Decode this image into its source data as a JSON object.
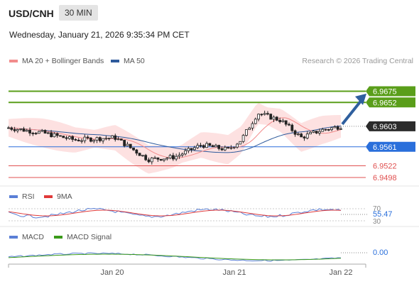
{
  "header": {
    "symbol": "USD/CNH",
    "timeframe": "30 MIN",
    "datetime": "Wednesday, January 21, 2026 9:35:34 PM CET"
  },
  "legend": {
    "ma20": "MA 20 + Bollinger Bands",
    "ma50": "MA 50",
    "credit": "Research © 2026 Trading Central",
    "rsi": "RSI",
    "rsi_ma": "9MA",
    "macd": "MACD",
    "macd_signal": "MACD Signal"
  },
  "colors": {
    "ma20": "#f28c8c",
    "ma50": "#2e5a9c",
    "bollinger": "#fde1e1",
    "resistance": "#5a9e1a",
    "support": "#e05050",
    "pivot": "#2a6fdb",
    "arrow": "#2f5f9e",
    "candle": "#222222",
    "rsi": "#5a7fd6",
    "rsi_ma": "#e03a3a",
    "macd": "#5a7fd6",
    "macd_signal": "#3a9a1a"
  },
  "chart_data": [
    {
      "type": "candlestick",
      "ylim": [
        6.948,
        6.97
      ],
      "xticks": [
        "Jan 20",
        "Jan 21",
        "Jan 22"
      ],
      "levels": [
        {
          "label": "6.9675",
          "value": 6.9675,
          "kind": "resistance"
        },
        {
          "label": "6.9652",
          "value": 6.9652,
          "kind": "resistance"
        },
        {
          "label": "6.9603",
          "value": 6.9603,
          "kind": "last"
        },
        {
          "label": "6.9561",
          "value": 6.9561,
          "kind": "pivot"
        },
        {
          "label": "6.9522",
          "value": 6.9522,
          "kind": "support"
        },
        {
          "label": "6.9498",
          "value": 6.9498,
          "kind": "support"
        }
      ]
    },
    {
      "type": "line",
      "name": "RSI",
      "levels": [
        "70",
        "30"
      ],
      "last_value": "55.47"
    },
    {
      "type": "line",
      "name": "MACD",
      "last_value": "0.00"
    }
  ]
}
